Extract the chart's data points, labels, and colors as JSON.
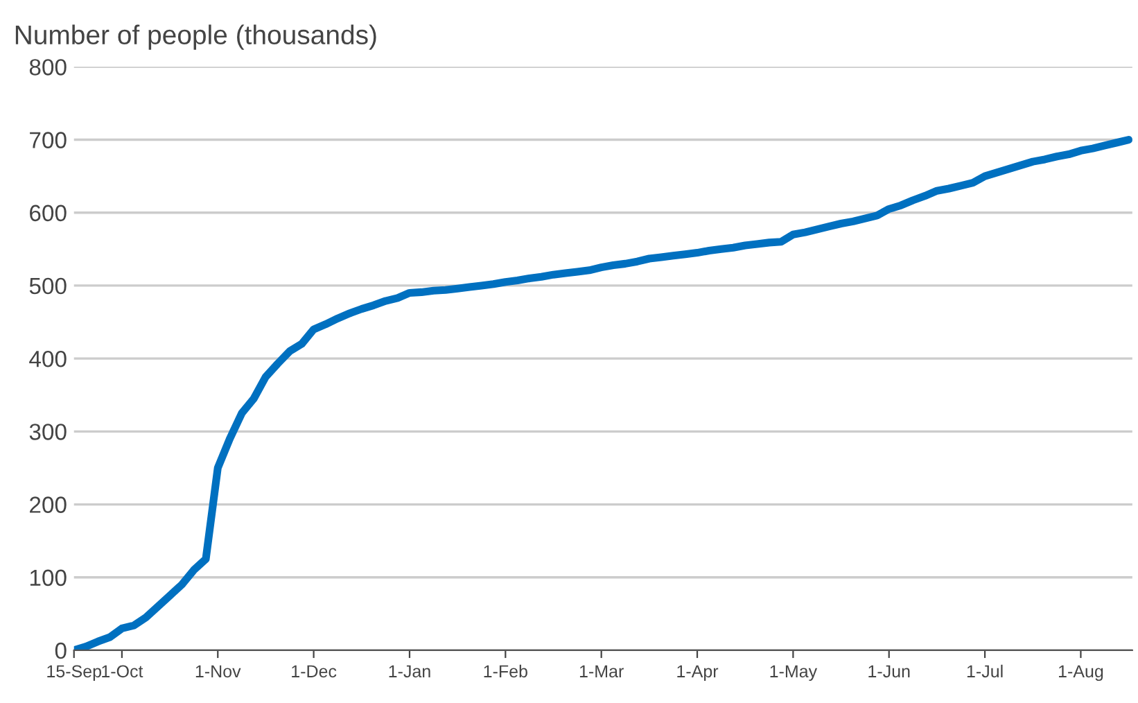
{
  "chart_data": {
    "type": "line",
    "title": "Number of people (thousands)",
    "categories": [
      "15-Sep",
      null,
      null,
      null,
      "1-Oct",
      null,
      null,
      null,
      null,
      null,
      null,
      null,
      "1-Nov",
      null,
      null,
      null,
      null,
      null,
      null,
      null,
      "1-Dec",
      null,
      null,
      null,
      null,
      null,
      null,
      null,
      "1-Jan",
      null,
      null,
      null,
      null,
      null,
      null,
      null,
      "1-Feb",
      null,
      null,
      null,
      null,
      null,
      null,
      null,
      "1-Mar",
      null,
      null,
      null,
      null,
      null,
      null,
      null,
      "1-Apr",
      null,
      null,
      null,
      null,
      null,
      null,
      null,
      "1-May",
      null,
      null,
      null,
      null,
      null,
      null,
      null,
      "1-Jun",
      null,
      null,
      null,
      null,
      null,
      null,
      null,
      "1-Jul",
      null,
      null,
      null,
      null,
      null,
      null,
      null,
      "1-Aug",
      null,
      null,
      null,
      null
    ],
    "series": [
      {
        "color": "#0070c0",
        "values": [
          0,
          5,
          12,
          18,
          30,
          34,
          45,
          60,
          75,
          90,
          110,
          125,
          250,
          290,
          325,
          345,
          375,
          393,
          410,
          420,
          440,
          447,
          455,
          462,
          468,
          473,
          479,
          483,
          490,
          491,
          493,
          494,
          496,
          498,
          500,
          502,
          505,
          507,
          510,
          512,
          515,
          517,
          519,
          521,
          525,
          528,
          530,
          533,
          537,
          539,
          541,
          543,
          545,
          548,
          550,
          552,
          555,
          557,
          559,
          560,
          570,
          573,
          577,
          581,
          585,
          588,
          592,
          596,
          605,
          610,
          617,
          623,
          630,
          633,
          637,
          641,
          650,
          655,
          660,
          665,
          670,
          673,
          677,
          680,
          685,
          688,
          692,
          696,
          700
        ]
      }
    ],
    "ylim": [
      0,
      800
    ],
    "yticks": [
      0,
      100,
      200,
      300,
      400,
      500,
      600,
      700,
      800
    ],
    "grid": "y",
    "legend": false,
    "marker": "none",
    "line_style": "solid"
  }
}
